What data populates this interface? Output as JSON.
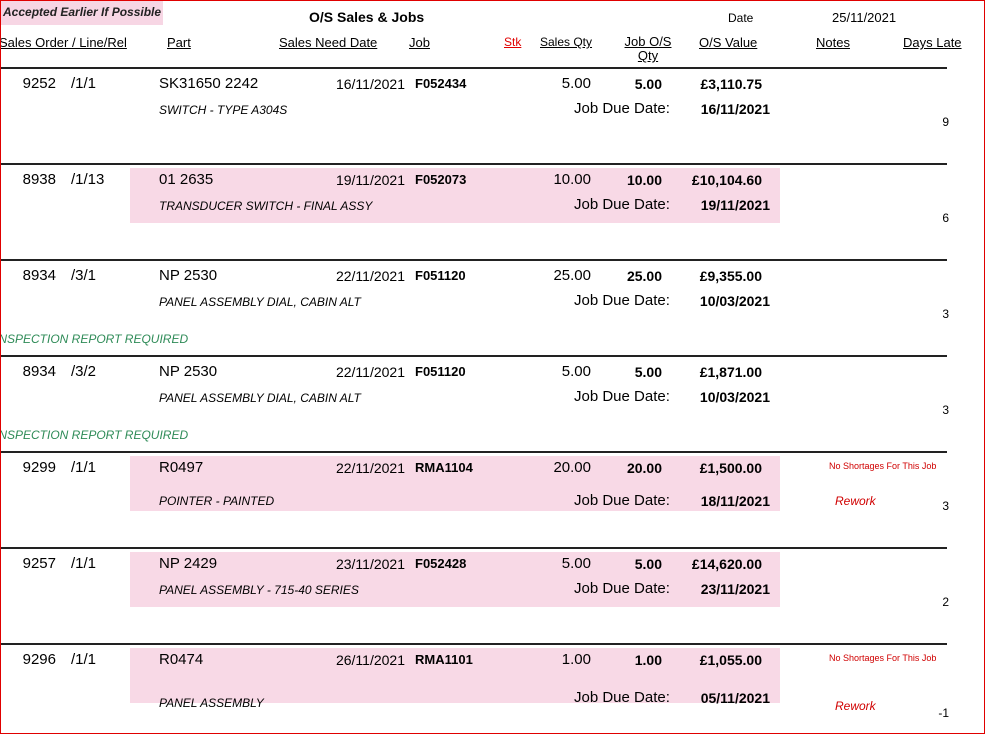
{
  "header": {
    "badge": "Accepted Earlier If Possible",
    "title": "O/S Sales & Jobs",
    "date_label": "Date",
    "date": "25/11/2021"
  },
  "columns": [
    "Sales Order / Line/Rel",
    "Part",
    "Sales Need Date",
    "Job",
    "Stk",
    "Sales Qty",
    "Job O/S Qty",
    "O/S Value",
    "Notes",
    "Days Late"
  ],
  "rows": [
    {
      "order": "9252",
      "line": "/1/1",
      "part": "SK31650 2242",
      "description": "SWITCH - TYPE A304S",
      "need_date": "16/11/2021",
      "job": "F052434",
      "sales_qty": "5.00",
      "job_qty": "5.00",
      "value": "£3,110.75",
      "due_label": "Job Due Date:",
      "due_date": "16/11/2021",
      "days_late": "9",
      "highlighted": false
    },
    {
      "order": "8938",
      "line": "/1/13",
      "part": "01 2635",
      "description": "TRANSDUCER SWITCH - FINAL ASSY",
      "need_date": "19/11/2021",
      "job": "F052073",
      "sales_qty": "10.00",
      "job_qty": "10.00",
      "value": "£10,104.60",
      "due_label": "Job Due Date:",
      "due_date": "19/11/2021",
      "days_late": "6",
      "highlighted": true
    },
    {
      "order": "8934",
      "line": "/3/1",
      "part": "NP 2530",
      "description": "PANEL ASSEMBLY DIAL, CABIN ALT",
      "need_date": "22/11/2021",
      "job": "F051120",
      "sales_qty": "25.00",
      "job_qty": "25.00",
      "value": "£9,355.00",
      "due_label": "Job Due Date:",
      "due_date": "10/03/2021",
      "days_late": "3",
      "comment": "INSPECTION REPORT REQUIRED",
      "highlighted": false
    },
    {
      "order": "8934",
      "line": "/3/2",
      "part": "NP 2530",
      "description": "PANEL ASSEMBLY DIAL, CABIN ALT",
      "need_date": "22/11/2021",
      "job": "F051120",
      "sales_qty": "5.00",
      "job_qty": "5.00",
      "value": "£1,871.00",
      "due_label": "Job Due Date:",
      "due_date": "10/03/2021",
      "days_late": "3",
      "comment": "INSPECTION REPORT REQUIRED",
      "highlighted": false
    },
    {
      "order": "9299",
      "line": "/1/1",
      "part": "R0497",
      "description": "POINTER - PAINTED",
      "need_date": "22/11/2021",
      "job": "RMA1104",
      "sales_qty": "20.00",
      "job_qty": "20.00",
      "value": "£1,500.00",
      "due_label": "Job Due Date:",
      "due_date": "18/11/2021",
      "days_late": "3",
      "note": "No Shortages For This Job",
      "note2": "Rework",
      "highlighted": true
    },
    {
      "order": "9257",
      "line": "/1/1",
      "part": "NP 2429",
      "description": "PANEL ASSEMBLY - 715-40 SERIES",
      "need_date": "23/11/2021",
      "job": "F052428",
      "sales_qty": "5.00",
      "job_qty": "5.00",
      "value": "£14,620.00",
      "due_label": "Job Due Date:",
      "due_date": "23/11/2021",
      "days_late": "2",
      "highlighted": true
    },
    {
      "order": "9296",
      "line": "/1/1",
      "part": "R0474",
      "description": "PANEL ASSEMBLY",
      "need_date": "26/11/2021",
      "job": "RMA1101",
      "sales_qty": "1.00",
      "job_qty": "1.00",
      "value": "£1,055.00",
      "due_label": "Job Due Date:",
      "due_date": "05/11/2021",
      "days_late": "-1",
      "note": "No Shortages For This Job",
      "note2": "Rework",
      "highlighted": true
    }
  ]
}
